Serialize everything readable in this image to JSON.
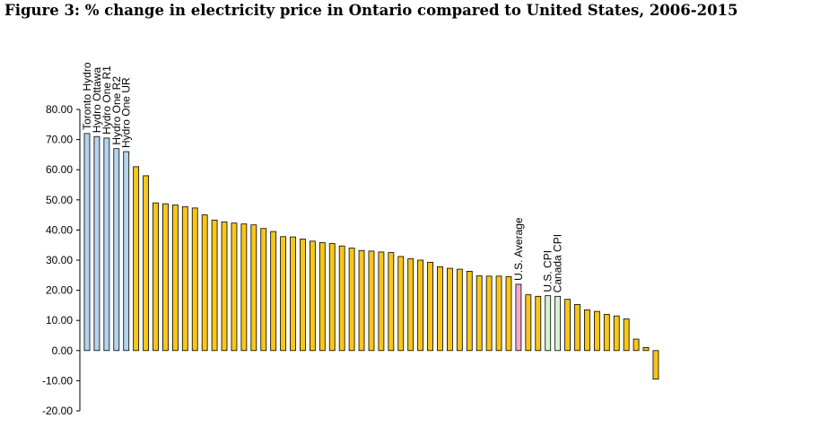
{
  "title": "Figure 3: % change in electricity price in Ontario compared to United States, 2006-2015",
  "colors": {
    "ontario": "#b4d3ef",
    "state": "#f7c61b",
    "us_average": "#f3a9cb",
    "cpi": "#d6f2d4",
    "stroke": "#000000"
  },
  "chart_data": {
    "type": "bar",
    "title": "Figure 3: % change in electricity price in Ontario compared to United States, 2006-2015",
    "xlabel": "",
    "ylabel": "",
    "ylim": [
      -20,
      80
    ],
    "yticks": [
      80,
      70,
      60,
      50,
      40,
      30,
      20,
      10,
      0,
      -10,
      -20
    ],
    "ytick_labels": [
      "80.00",
      "70.00",
      "60.00",
      "50.00",
      "40.00",
      "30.00",
      "20.00",
      "10.00",
      "0.00",
      "-10.00",
      "-20.00"
    ],
    "grid": false,
    "legend": "none",
    "bars": [
      {
        "label": "Toronto Hydro",
        "value": 72.0,
        "group": "ontario"
      },
      {
        "label": "Hydro Ottawa",
        "value": 71.0,
        "group": "ontario"
      },
      {
        "label": "Hydro One R1",
        "value": 70.5,
        "group": "ontario"
      },
      {
        "label": "Hydro One R2",
        "value": 67.0,
        "group": "ontario"
      },
      {
        "label": "Hydro One UR",
        "value": 66.0,
        "group": "ontario"
      },
      {
        "label": "",
        "value": 61.0,
        "group": "state"
      },
      {
        "label": "",
        "value": 58.0,
        "group": "state"
      },
      {
        "label": "",
        "value": 49.0,
        "group": "state"
      },
      {
        "label": "",
        "value": 48.7,
        "group": "state"
      },
      {
        "label": "",
        "value": 48.3,
        "group": "state"
      },
      {
        "label": "",
        "value": 47.7,
        "group": "state"
      },
      {
        "label": "",
        "value": 47.3,
        "group": "state"
      },
      {
        "label": "",
        "value": 45.0,
        "group": "state"
      },
      {
        "label": "",
        "value": 43.3,
        "group": "state"
      },
      {
        "label": "",
        "value": 42.7,
        "group": "state"
      },
      {
        "label": "",
        "value": 42.3,
        "group": "state"
      },
      {
        "label": "",
        "value": 42.0,
        "group": "state"
      },
      {
        "label": "",
        "value": 41.7,
        "group": "state"
      },
      {
        "label": "",
        "value": 40.5,
        "group": "state"
      },
      {
        "label": "",
        "value": 39.5,
        "group": "state"
      },
      {
        "label": "",
        "value": 37.8,
        "group": "state"
      },
      {
        "label": "",
        "value": 37.7,
        "group": "state"
      },
      {
        "label": "",
        "value": 37.0,
        "group": "state"
      },
      {
        "label": "",
        "value": 36.3,
        "group": "state"
      },
      {
        "label": "",
        "value": 35.8,
        "group": "state"
      },
      {
        "label": "",
        "value": 35.5,
        "group": "state"
      },
      {
        "label": "",
        "value": 34.7,
        "group": "state"
      },
      {
        "label": "",
        "value": 34.0,
        "group": "state"
      },
      {
        "label": "",
        "value": 33.2,
        "group": "state"
      },
      {
        "label": "",
        "value": 33.0,
        "group": "state"
      },
      {
        "label": "",
        "value": 32.7,
        "group": "state"
      },
      {
        "label": "",
        "value": 32.5,
        "group": "state"
      },
      {
        "label": "",
        "value": 31.2,
        "group": "state"
      },
      {
        "label": "",
        "value": 30.5,
        "group": "state"
      },
      {
        "label": "",
        "value": 30.0,
        "group": "state"
      },
      {
        "label": "",
        "value": 29.3,
        "group": "state"
      },
      {
        "label": "",
        "value": 27.8,
        "group": "state"
      },
      {
        "label": "",
        "value": 27.3,
        "group": "state"
      },
      {
        "label": "",
        "value": 27.0,
        "group": "state"
      },
      {
        "label": "",
        "value": 26.3,
        "group": "state"
      },
      {
        "label": "",
        "value": 24.8,
        "group": "state"
      },
      {
        "label": "",
        "value": 24.7,
        "group": "state"
      },
      {
        "label": "",
        "value": 24.7,
        "group": "state"
      },
      {
        "label": "",
        "value": 24.5,
        "group": "state"
      },
      {
        "label": "U.S. Average",
        "value": 22.0,
        "group": "us_average"
      },
      {
        "label": "",
        "value": 18.5,
        "group": "state"
      },
      {
        "label": "",
        "value": 18.0,
        "group": "state"
      },
      {
        "label": "U.S. CPI",
        "value": 18.2,
        "group": "cpi"
      },
      {
        "label": "Canada CPI",
        "value": 18.0,
        "group": "cpi"
      },
      {
        "label": "",
        "value": 17.0,
        "group": "state"
      },
      {
        "label": "",
        "value": 15.3,
        "group": "state"
      },
      {
        "label": "",
        "value": 13.5,
        "group": "state"
      },
      {
        "label": "",
        "value": 13.0,
        "group": "state"
      },
      {
        "label": "",
        "value": 12.0,
        "group": "state"
      },
      {
        "label": "",
        "value": 11.5,
        "group": "state"
      },
      {
        "label": "",
        "value": 10.5,
        "group": "state"
      },
      {
        "label": "",
        "value": 3.8,
        "group": "state"
      },
      {
        "label": "",
        "value": 1.0,
        "group": "state"
      },
      {
        "label": "",
        "value": -9.5,
        "group": "state"
      }
    ]
  }
}
